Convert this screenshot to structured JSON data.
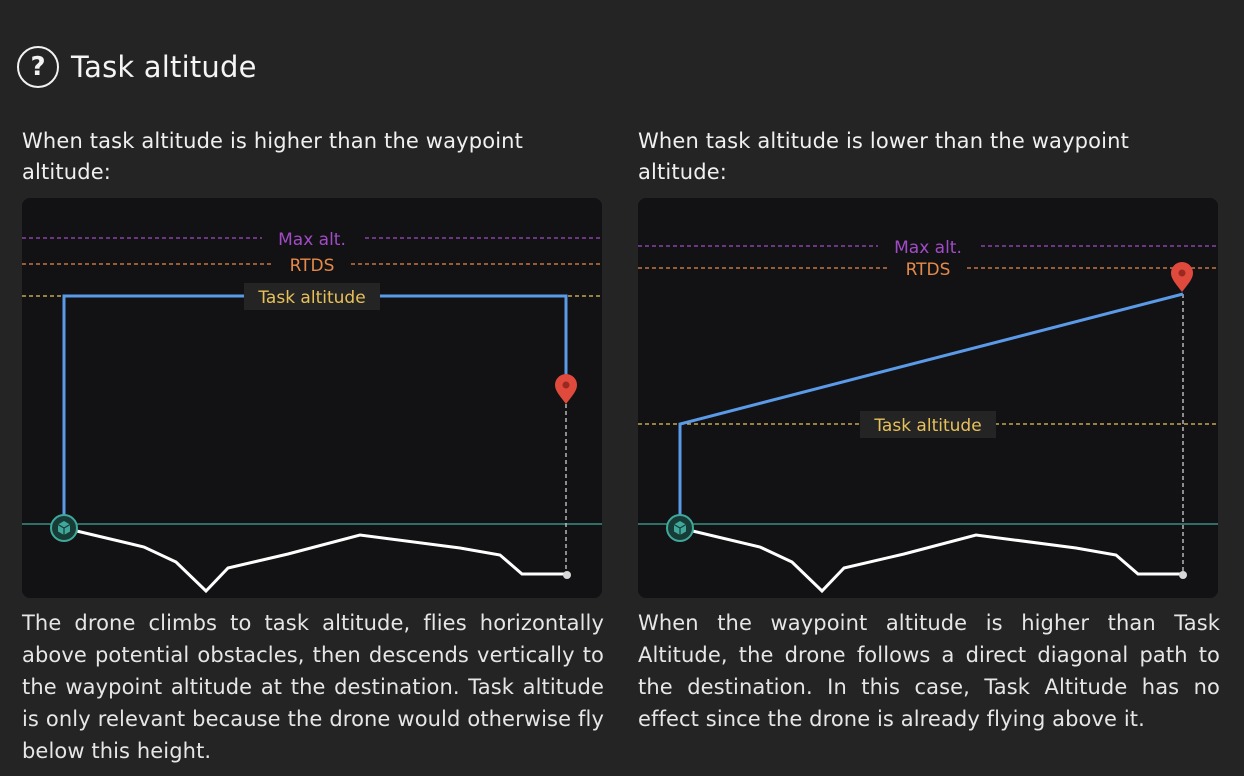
{
  "header": {
    "title": "Task altitude",
    "help_icon_glyph": "?"
  },
  "left": {
    "heading": "When task altitude is higher than the waypoint altitude:",
    "labels": {
      "max_alt": "Max alt.",
      "rtds": "RTDS",
      "task_altitude": "Task altitude"
    },
    "description": "The drone climbs to task altitude, flies horizontally above potential obstacles, then descends vertically to the waypoint altitude at the destination. Task altitude is only relevant because the drone would otherwise fly below this height."
  },
  "right": {
    "heading": "When task altitude is lower than the waypoint altitude:",
    "labels": {
      "max_alt": "Max alt.",
      "rtds": "RTDS",
      "task_altitude": "Task altitude"
    },
    "description": "When the waypoint altitude is higher than Task Altitude, the drone follows a direct diagonal path to the destination. In this case, Task Altitude has no effect since the drone is already flying above it."
  },
  "colors": {
    "max_alt": "#a24bc7",
    "rtds": "#e58a4a",
    "task_altitude": "#e8c15a",
    "flight_path": "#5b9ae8",
    "ground_reference": "#3fa89a",
    "terrain": "#ffffff",
    "waypoint_marker": "#e04a3c"
  },
  "icons": {
    "help": "question-circle-icon",
    "start": "drone-box-icon",
    "destination": "map-pin-icon"
  }
}
